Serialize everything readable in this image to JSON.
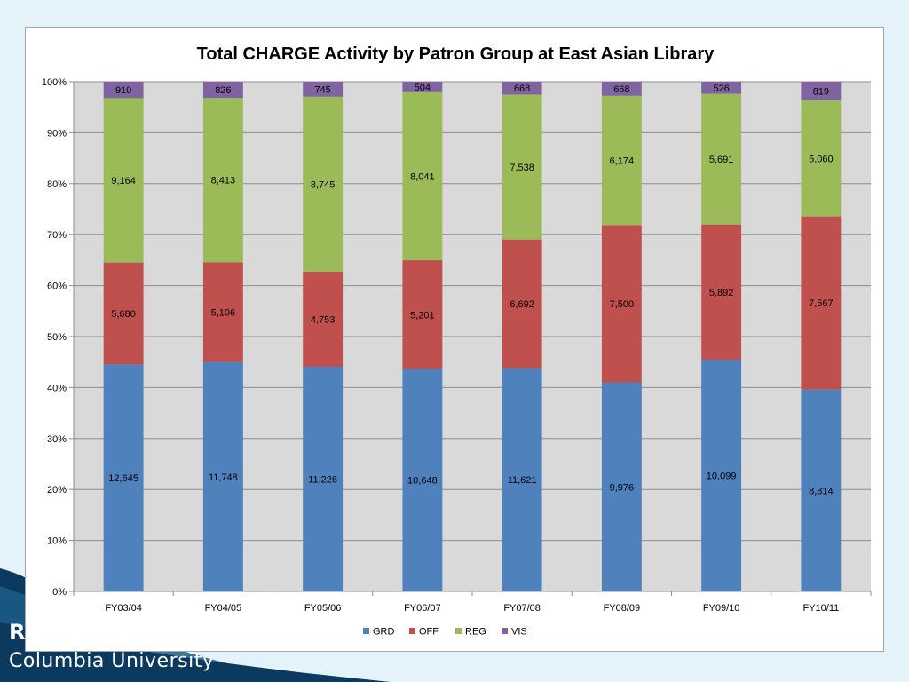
{
  "footer": {
    "line1": "R",
    "line2": "Columbia University"
  },
  "colors": {
    "GRD": "#4f81bd",
    "OFF": "#c0504d",
    "REG": "#9bbb59",
    "VIS": "#8064a2",
    "plot_bg": "#d9d9d9",
    "slide_bg": "#e3f3f9",
    "footer_dark": "#0b3a5e"
  },
  "chart_data": {
    "type": "bar",
    "stacked": "percent",
    "title": "Total CHARGE Activity by Patron Group at East Asian Library",
    "xlabel": "",
    "ylabel": "",
    "ylim": [
      0,
      100
    ],
    "yticks": [
      "0%",
      "10%",
      "20%",
      "30%",
      "40%",
      "50%",
      "60%",
      "70%",
      "80%",
      "90%",
      "100%"
    ],
    "grid": true,
    "legend_position": "bottom",
    "categories": [
      "FY03/04",
      "FY04/05",
      "FY05/06",
      "FY06/07",
      "FY07/08",
      "FY08/09",
      "FY09/10",
      "FY10/11"
    ],
    "series": [
      {
        "name": "GRD",
        "values": [
          12645,
          11748,
          11226,
          10648,
          11621,
          9976,
          10099,
          8814
        ],
        "labels": [
          "12,645",
          "11,748",
          "11,226",
          "10,648",
          "11,621",
          "9,976",
          "10,099",
          "8,814"
        ]
      },
      {
        "name": "OFF",
        "values": [
          5680,
          5106,
          4753,
          5201,
          6692,
          7500,
          5892,
          7567
        ],
        "labels": [
          "5,680",
          "5,106",
          "4,753",
          "5,201",
          "6,692",
          "7,500",
          "5,892",
          "7,567"
        ]
      },
      {
        "name": "REG",
        "values": [
          9164,
          8413,
          8745,
          8041,
          7538,
          6174,
          5691,
          5060
        ],
        "labels": [
          "9,164",
          "8,413",
          "8,745",
          "8,041",
          "7,538",
          "6,174",
          "5,691",
          "5,060"
        ]
      },
      {
        "name": "VIS",
        "values": [
          910,
          826,
          745,
          504,
          668,
          668,
          526,
          819
        ],
        "labels": [
          "910",
          "826",
          "745",
          "504",
          "668",
          "668",
          "526",
          "819"
        ]
      }
    ]
  }
}
